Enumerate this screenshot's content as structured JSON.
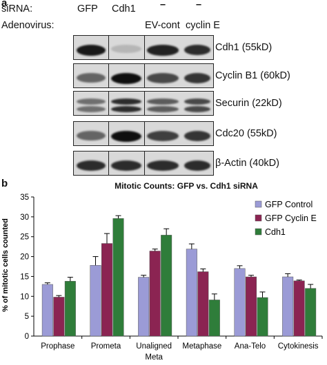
{
  "panel_a": {
    "label": "a",
    "header": {
      "sirna_label": "siRNA:",
      "adenovirus_label": "Adenovirus:",
      "sirna": [
        "GFP",
        "Cdh1",
        "–",
        "–"
      ],
      "adenovirus": [
        "",
        "",
        "EV-cont",
        "cyclin E"
      ]
    },
    "blots": [
      {
        "label": "Cdh1 (55kD)",
        "intensities": [
          0.95,
          0.12,
          0.9,
          0.85
        ]
      },
      {
        "label": "Cyclin B1 (60kD)",
        "intensities": [
          0.55,
          1.0,
          0.7,
          0.8
        ]
      },
      {
        "label": "Securin (22kD)",
        "intensities": [
          0.5,
          0.85,
          0.6,
          0.7
        ]
      },
      {
        "label": "Cdc20 (55kD)",
        "intensities": [
          0.55,
          1.0,
          0.75,
          0.8
        ]
      },
      {
        "label": "β-Actin (40kD)",
        "intensities": [
          0.85,
          0.85,
          0.85,
          0.85
        ]
      }
    ]
  },
  "panel_b": {
    "label": "b",
    "colors": {
      "gfp_control": "#9b9bd6",
      "gfp_cyclin_e": "#8b2452",
      "cdh1": "#2f7d3a"
    }
  },
  "chart_data": {
    "type": "bar",
    "title": "Mitotic Counts: GFP vs. Cdh1 siRNA",
    "xlabel": "",
    "ylabel": "% of mitotic cells counted",
    "ylim": [
      0,
      35
    ],
    "yticks": [
      0,
      5,
      10,
      15,
      20,
      25,
      30,
      35
    ],
    "categories": [
      "Prophase",
      "Prometa",
      "Unaligned Meta",
      "Metaphase",
      "Ana-Telo",
      "Cytokinesis"
    ],
    "series": [
      {
        "name": "GFP Control",
        "values": [
          13.0,
          17.8,
          14.8,
          21.9,
          17.0,
          14.9
        ],
        "errors": [
          0.4,
          2.2,
          0.5,
          1.3,
          0.7,
          0.8
        ]
      },
      {
        "name": "GFP Cyclin E",
        "values": [
          9.8,
          23.3,
          21.4,
          16.2,
          14.9,
          13.9
        ],
        "errors": [
          0.4,
          2.5,
          0.5,
          0.7,
          0.4,
          0.2
        ]
      },
      {
        "name": "Cdh1",
        "values": [
          13.8,
          29.6,
          25.4,
          9.1,
          9.7,
          12.0
        ],
        "errors": [
          1.0,
          0.7,
          1.6,
          1.5,
          1.4,
          1.0
        ]
      }
    ],
    "grid": false,
    "legend_position": "top-right"
  }
}
